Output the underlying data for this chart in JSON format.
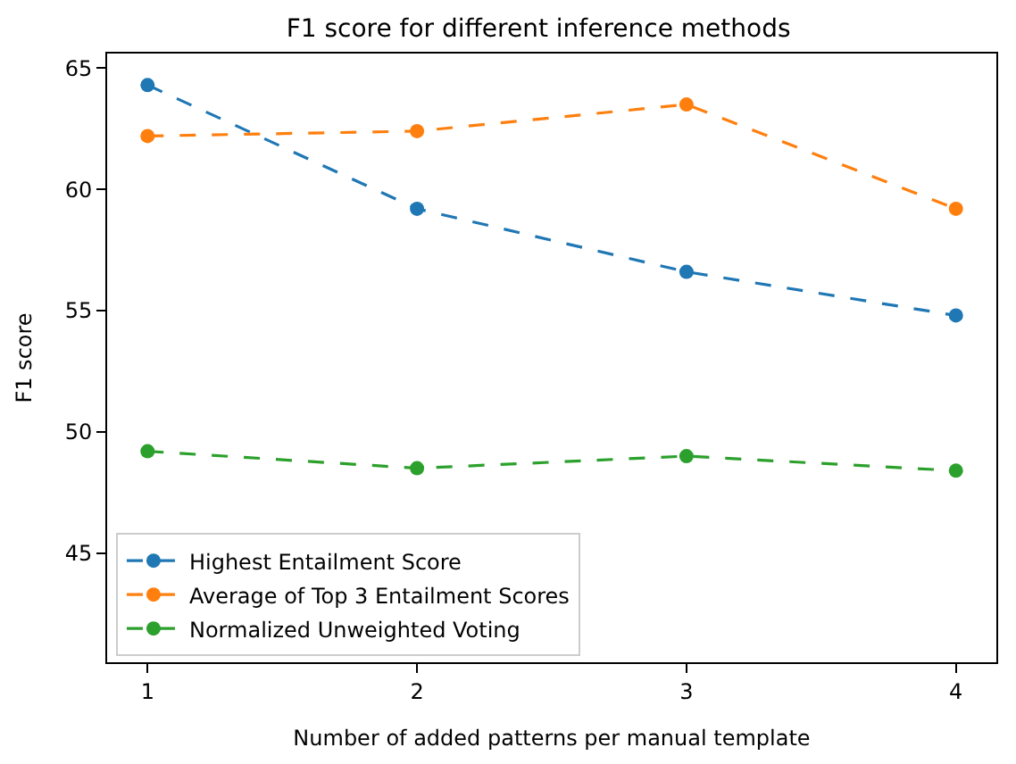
{
  "chart_data": {
    "type": "line",
    "title": "F1 score for different inference methods",
    "xlabel": "Number of added patterns per manual template",
    "ylabel": "F1 score",
    "x": [
      1,
      2,
      3,
      4
    ],
    "series": [
      {
        "name": "Highest Entailment Score",
        "color": "#1f77b4",
        "values": [
          64.3,
          59.2,
          56.6,
          54.8
        ]
      },
      {
        "name": "Average of Top 3 Entailment Scores",
        "color": "#ff7f0e",
        "values": [
          62.2,
          62.4,
          63.5,
          59.2
        ]
      },
      {
        "name": "Normalized Unweighted Voting",
        "color": "#2ca02c",
        "values": [
          49.2,
          48.5,
          49.0,
          48.4
        ]
      }
    ],
    "xlim": [
      0.85,
      4.15
    ],
    "xticks": [
      1,
      2,
      3,
      4
    ],
    "ylim": [
      40.5,
      65.6
    ],
    "yticks": [
      45,
      50,
      55,
      60,
      65
    ],
    "legend": "bottom left",
    "marker": "circle",
    "line_style": "dashed"
  }
}
